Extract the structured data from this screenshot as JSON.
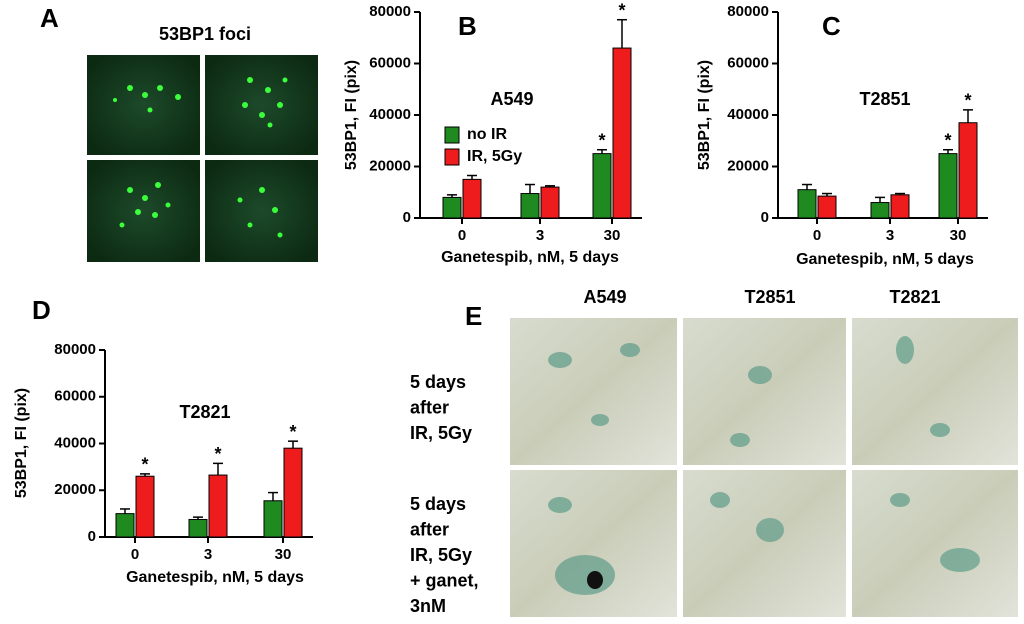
{
  "panel_a": {
    "label": "A",
    "title": "53BP1 foci"
  },
  "panel_e": {
    "label": "E",
    "columns": [
      "A549",
      "T2851",
      "T2821"
    ],
    "rows": [
      [
        "5 days",
        "after",
        "IR, 5Gy"
      ],
      [
        "5 days",
        "after",
        "IR, 5Gy",
        "+ ganet,",
        "3nM"
      ]
    ]
  },
  "chart_data": [
    {
      "type": "bar",
      "panel_label": "B",
      "title": "A549",
      "ylabel": "53BP1, FI (pix)",
      "xlabel": "Ganetespib, nM, 5 days",
      "categories": [
        "0",
        "3",
        "30"
      ],
      "ylim": [
        0,
        80000
      ],
      "yticks": [
        0,
        20000,
        40000,
        60000,
        80000
      ],
      "series": [
        {
          "name": "no  IR",
          "color": "#1f8a1f",
          "values": [
            8000,
            9500,
            25000
          ],
          "errors": [
            1000,
            3500,
            1500
          ],
          "significance": [
            null,
            null,
            "*"
          ]
        },
        {
          "name": "IR, 5Gy",
          "color": "#ee1c1c",
          "values": [
            15000,
            12000,
            66000
          ],
          "errors": [
            1500,
            500,
            11000
          ],
          "significance": [
            null,
            null,
            "*"
          ]
        }
      ]
    },
    {
      "type": "bar",
      "panel_label": "C",
      "title": "T2851",
      "ylabel": "53BP1, FI (pix)",
      "xlabel": "Ganetespib, nM, 5 days",
      "categories": [
        "0",
        "3",
        "30"
      ],
      "ylim": [
        0,
        80000
      ],
      "yticks": [
        0,
        20000,
        40000,
        60000,
        80000
      ],
      "series": [
        {
          "color": "#1f8a1f",
          "values": [
            11000,
            6000,
            25000
          ],
          "errors": [
            2000,
            2000,
            1500
          ],
          "significance": [
            null,
            null,
            "*"
          ]
        },
        {
          "color": "#ee1c1c",
          "values": [
            8500,
            9000,
            37000
          ],
          "errors": [
            1000,
            500,
            5000
          ],
          "significance": [
            null,
            null,
            "*"
          ]
        }
      ]
    },
    {
      "type": "bar",
      "panel_label": "D",
      "title": "T2821",
      "ylabel": "53BP1, FI (pix)",
      "xlabel": "Ganetespib, nM, 5 days",
      "categories": [
        "0",
        "3",
        "30"
      ],
      "ylim": [
        0,
        80000
      ],
      "yticks": [
        0,
        20000,
        40000,
        60000,
        80000
      ],
      "series": [
        {
          "color": "#1f8a1f",
          "values": [
            10000,
            7500,
            15500
          ],
          "errors": [
            2000,
            1000,
            3500
          ],
          "significance": [
            null,
            null,
            null
          ]
        },
        {
          "color": "#ee1c1c",
          "values": [
            26000,
            26500,
            38000
          ],
          "errors": [
            1000,
            5000,
            3000
          ],
          "significance": [
            "*",
            "*",
            "*"
          ]
        }
      ]
    }
  ]
}
